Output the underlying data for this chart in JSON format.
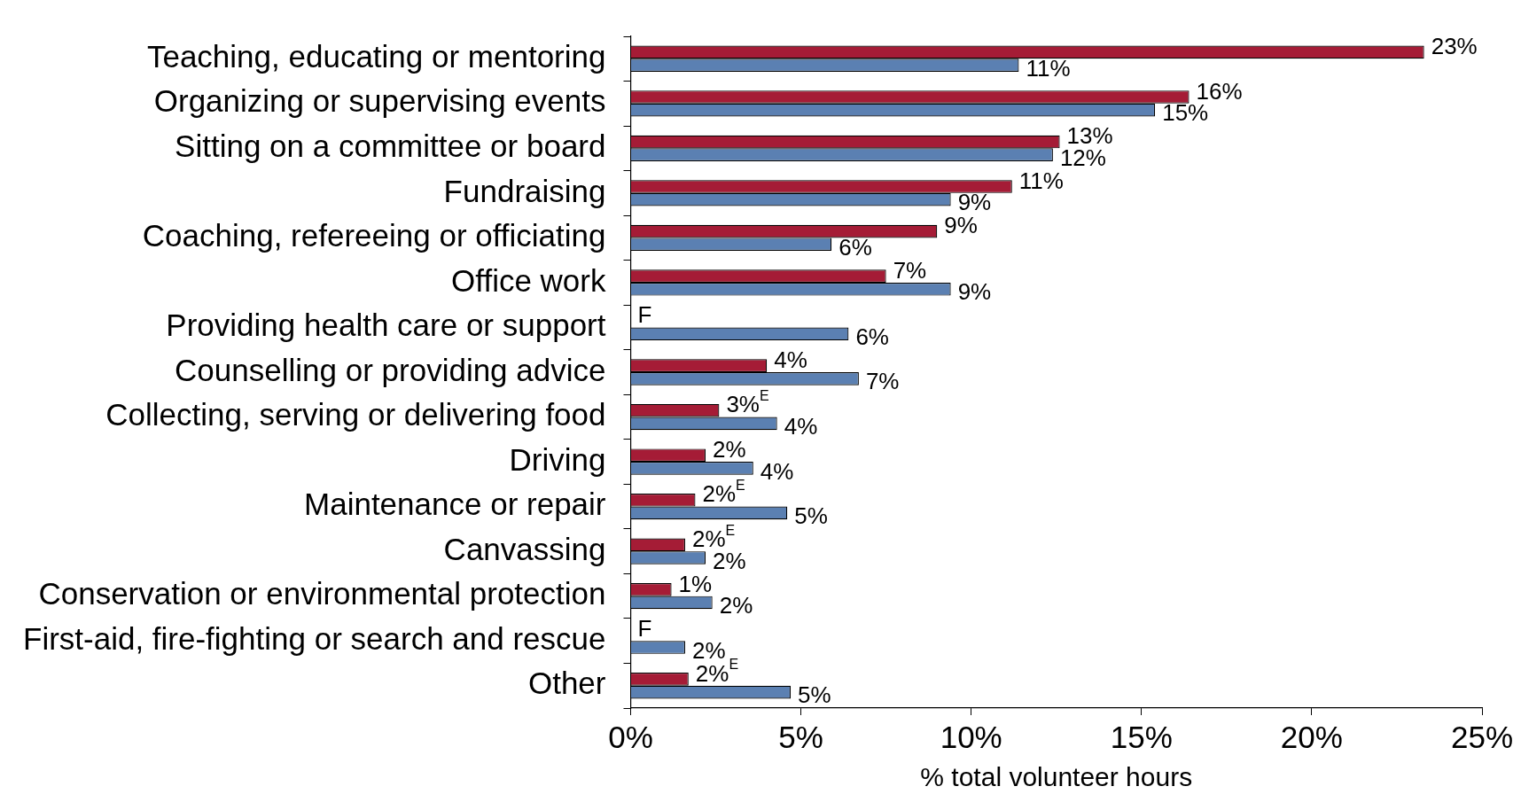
{
  "chart_data": {
    "type": "bar",
    "orientation": "horizontal",
    "xlabel": "% total volunteer hours",
    "categories": [
      "Teaching, educating or mentoring",
      "Organizing or supervising events",
      "Sitting on a committee or board",
      "Fundraising",
      "Coaching, refereeing or officiating",
      "Office work",
      "Providing health care or support",
      "Counselling or providing advice",
      "Collecting, serving or delivering food",
      "Driving",
      "Maintenance or repair",
      "Canvassing",
      "Conservation or environmental protection",
      "First-aid, fire-fighting or search and rescue",
      "Other"
    ],
    "series": [
      {
        "color": "#a51c36",
        "values": [
          23.3,
          16.4,
          12.6,
          11.2,
          9.0,
          7.5,
          null,
          4.0,
          2.6,
          2.2,
          1.9,
          1.6,
          1.2,
          null,
          1.7
        ],
        "value_labels": [
          "23%",
          "16%",
          "13%",
          "11%",
          "9%",
          "7%",
          "F",
          "4%",
          "3%$^{E}$",
          "2%",
          "2%$^{E}$",
          "2%$^{E}$",
          "1%",
          "F",
          "2%$^{E}$"
        ]
      },
      {
        "color": "#5b80b2",
        "values": [
          11.4,
          15.4,
          12.4,
          9.4,
          5.9,
          9.4,
          6.4,
          6.7,
          4.3,
          3.6,
          4.6,
          2.2,
          2.4,
          1.6,
          4.7
        ],
        "value_labels": [
          "11%",
          "15%",
          "12%",
          "9%",
          "6%",
          "9%",
          "6%",
          "7%",
          "4%",
          "4%",
          "5%",
          "2%",
          "2%",
          "2%",
          "5%"
        ]
      }
    ],
    "xlim": [
      0,
      25
    ],
    "xticks": [
      {
        "value": 0,
        "label": "0%"
      },
      {
        "value": 5,
        "label": "5%"
      },
      {
        "value": 10,
        "label": "10%"
      },
      {
        "value": 15,
        "label": "15%"
      },
      {
        "value": 20,
        "label": "20%"
      },
      {
        "value": 25,
        "label": "25%"
      }
    ],
    "grid": false,
    "legend": false
  }
}
